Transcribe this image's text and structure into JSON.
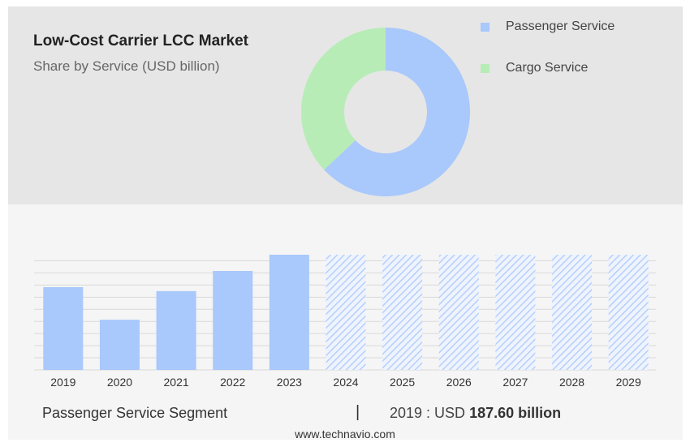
{
  "header": {
    "title": "Low-Cost Carrier LCC Market",
    "subtitle": "Share by Service (USD billion)"
  },
  "legend": [
    {
      "label": "Passenger Service",
      "color": "#a9c8fb"
    },
    {
      "label": "Cargo Service",
      "color": "#b7ecb7"
    }
  ],
  "footer": {
    "segment": "Passenger Service Segment",
    "separator": "|",
    "year_label": "2019 : USD",
    "value_label": "187.60 billion",
    "site": "www.technavio.com"
  },
  "chart_data": [
    {
      "type": "pie",
      "donut": true,
      "slices": [
        {
          "label": "Passenger Service",
          "value": 63,
          "color": "#a9c8fb"
        },
        {
          "label": "Cargo Service",
          "value": 37,
          "color": "#b7ecb7"
        }
      ]
    },
    {
      "type": "bar",
      "categories": [
        "2019",
        "2020",
        "2021",
        "2022",
        "2023",
        "2024",
        "2025",
        "2026",
        "2027",
        "2028",
        "2029"
      ],
      "values": [
        187.6,
        113.8,
        178.6,
        224.3,
        261.1,
        261.1,
        261.1,
        261.1,
        261.1,
        261.1,
        261.1
      ],
      "forecast": [
        false,
        false,
        false,
        false,
        false,
        true,
        true,
        true,
        true,
        true,
        true
      ],
      "color": "#a9c8fb",
      "grid": true
    }
  ]
}
